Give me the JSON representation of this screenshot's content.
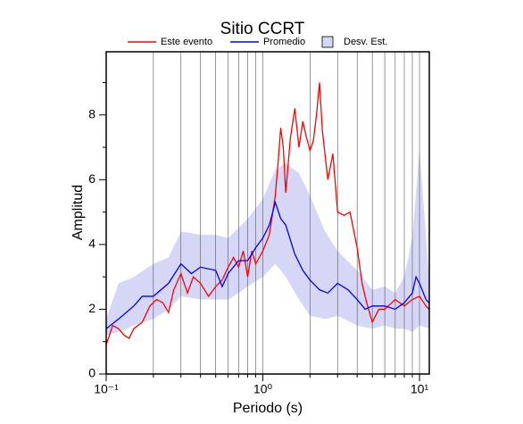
{
  "chart_data": {
    "type": "line",
    "title": "Sitio CCRT",
    "xlabel": "Periodo (s)",
    "ylabel": "Amplitud",
    "xscale": "log",
    "xlim": [
      0.1,
      11.55
    ],
    "ylim": [
      0,
      9.95
    ],
    "xticks": [
      {
        "value": 0.1,
        "label": "10⁻¹"
      },
      {
        "value": 1,
        "label": "10⁰"
      },
      {
        "value": 10,
        "label": "10¹"
      }
    ],
    "xgrid": [
      0.2,
      0.3,
      0.4,
      0.5,
      0.6,
      0.7,
      0.8,
      0.9,
      1,
      2,
      3,
      4,
      5,
      6,
      7,
      8,
      9,
      10
    ],
    "yticks": [
      0,
      2,
      4,
      6,
      8
    ],
    "yminor": [
      1,
      3,
      5,
      7,
      9
    ],
    "band": {
      "name": "Desv. Est.",
      "color": "#d6d6f7",
      "x": [
        0.1,
        0.12,
        0.15,
        0.2,
        0.25,
        0.3,
        0.4,
        0.5,
        0.6,
        0.7,
        0.8,
        1.0,
        1.2,
        1.4,
        1.7,
        2.0,
        2.5,
        3.0,
        4.0,
        5.0,
        6.0,
        7.0,
        8.0,
        9.0,
        10.0,
        11.5
      ],
      "upper": [
        1.7,
        2.8,
        3.0,
        3.4,
        3.6,
        4.4,
        4.3,
        4.3,
        4.2,
        4.5,
        4.8,
        5.4,
        6.3,
        6.5,
        6.2,
        5.5,
        4.4,
        3.8,
        3.2,
        2.6,
        2.7,
        2.5,
        3.0,
        4.2,
        6.9,
        3.0
      ],
      "lower": [
        1.2,
        1.3,
        1.5,
        1.7,
        2.0,
        2.4,
        2.3,
        2.3,
        2.3,
        2.5,
        2.7,
        3.0,
        3.4,
        3.0,
        2.3,
        1.8,
        1.7,
        1.8,
        1.5,
        1.4,
        1.5,
        1.4,
        1.4,
        1.3,
        1.5,
        1.4
      ]
    },
    "series": [
      {
        "name": "Este evento",
        "color": "#ff0000",
        "x": [
          0.1,
          0.11,
          0.12,
          0.13,
          0.14,
          0.15,
          0.17,
          0.19,
          0.21,
          0.23,
          0.25,
          0.27,
          0.3,
          0.33,
          0.36,
          0.4,
          0.45,
          0.5,
          0.55,
          0.6,
          0.65,
          0.7,
          0.75,
          0.8,
          0.85,
          0.9,
          1.0,
          1.1,
          1.2,
          1.25,
          1.3,
          1.35,
          1.4,
          1.5,
          1.6,
          1.7,
          1.8,
          1.9,
          2.0,
          2.1,
          2.2,
          2.3,
          2.4,
          2.6,
          2.8,
          3.0,
          3.3,
          3.6,
          4.0,
          4.3,
          4.6,
          5.0,
          5.5,
          6,
          7,
          8,
          9,
          10,
          11,
          11.5
        ],
        "values": [
          0.9,
          1.5,
          1.4,
          1.2,
          1.1,
          1.4,
          1.6,
          2.1,
          2.3,
          2.2,
          1.9,
          2.6,
          3.1,
          2.5,
          3.0,
          2.8,
          2.4,
          2.7,
          2.9,
          3.3,
          3.6,
          3.3,
          3.8,
          3.0,
          3.8,
          3.4,
          3.8,
          4.3,
          5.5,
          6.5,
          7.6,
          7.0,
          5.6,
          7.3,
          8.2,
          7.0,
          7.8,
          7.3,
          6.9,
          7.2,
          8.0,
          9.0,
          7.5,
          6.0,
          6.8,
          5.0,
          4.9,
          5.0,
          3.9,
          2.8,
          2.2,
          1.6,
          2.0,
          2.0,
          2.3,
          2.1,
          2.3,
          2.4,
          2.1,
          2.0
        ]
      },
      {
        "name": "Promedio",
        "color": "#0000ff",
        "x": [
          0.1,
          0.12,
          0.15,
          0.17,
          0.2,
          0.25,
          0.3,
          0.35,
          0.4,
          0.5,
          0.55,
          0.6,
          0.7,
          0.8,
          0.9,
          1.0,
          1.1,
          1.2,
          1.3,
          1.4,
          1.6,
          1.8,
          2.0,
          2.3,
          2.6,
          3.0,
          3.5,
          4,
          4.5,
          5,
          6,
          7,
          8,
          9,
          9.5,
          10,
          11,
          11.5
        ],
        "values": [
          1.4,
          1.7,
          2.1,
          2.4,
          2.4,
          2.8,
          3.4,
          3.1,
          3.3,
          3.2,
          2.7,
          3.1,
          3.5,
          3.5,
          3.9,
          4.2,
          4.6,
          5.3,
          4.8,
          4.6,
          3.7,
          3.2,
          2.9,
          2.6,
          2.5,
          2.8,
          2.6,
          2.3,
          2.0,
          2.1,
          2.1,
          2.0,
          2.2,
          2.5,
          3.0,
          2.8,
          2.3,
          2.2
        ]
      }
    ]
  }
}
